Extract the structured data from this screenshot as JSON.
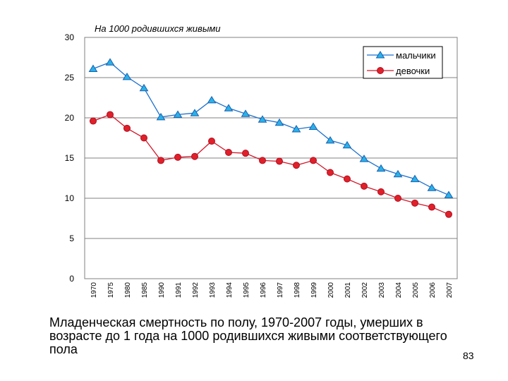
{
  "caption": "Младенческая смертность по полу, 1970-2007 годы, умерших в возрасте до 1 года на 1000 родившихся живыми соответствующего пола",
  "page_number": "83",
  "chart_data": {
    "type": "line",
    "unit_label": "На 1000 родившихся живыми",
    "categories": [
      "1970",
      "1975",
      "1980",
      "1985",
      "1990",
      "1991",
      "1992",
      "1993",
      "1994",
      "1995",
      "1996",
      "1997",
      "1998",
      "1999",
      "2000",
      "2001",
      "2002",
      "2003",
      "2004",
      "2005",
      "2006",
      "2007"
    ],
    "ylim": [
      0,
      30
    ],
    "yticks": [
      "0",
      "5",
      "10",
      "15",
      "20",
      "25",
      "30"
    ],
    "grid": true,
    "legend_position": "top-right",
    "series": [
      {
        "name": "мальчики",
        "color": "#1a6fd0",
        "marker": "triangle",
        "values": [
          26.1,
          26.9,
          25.1,
          23.7,
          20.1,
          20.4,
          20.6,
          22.2,
          21.2,
          20.5,
          19.8,
          19.4,
          18.6,
          18.9,
          17.2,
          16.6,
          14.9,
          13.7,
          13.0,
          12.4,
          11.3,
          10.4
        ]
      },
      {
        "name": "девочки",
        "color": "#d3182a",
        "marker": "circle",
        "values": [
          19.6,
          20.4,
          18.7,
          17.5,
          14.7,
          15.1,
          15.2,
          17.1,
          15.7,
          15.6,
          14.7,
          14.6,
          14.1,
          14.7,
          13.2,
          12.4,
          11.5,
          10.8,
          10.0,
          9.4,
          8.9,
          8.0
        ]
      }
    ]
  }
}
